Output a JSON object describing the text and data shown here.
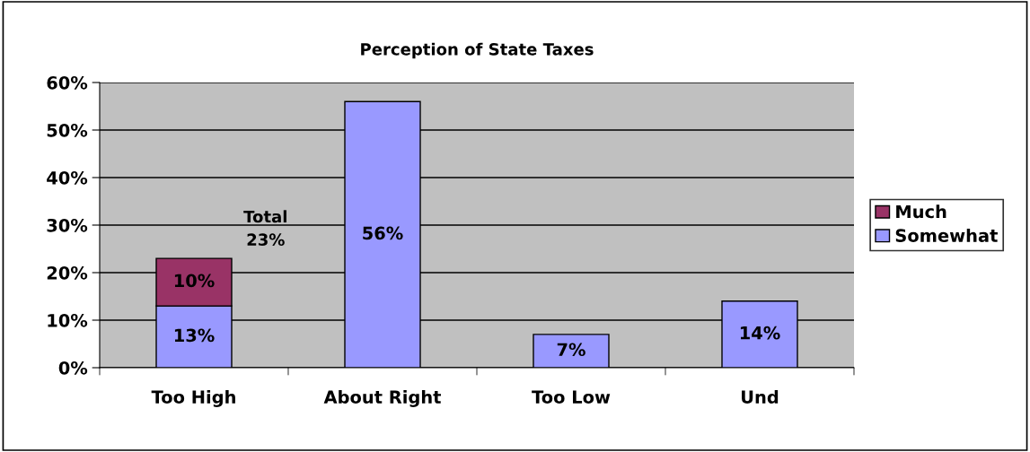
{
  "chart_data": {
    "type": "bar",
    "title": "Perception of State Taxes",
    "categories": [
      "Too High",
      "About Right",
      "Too Low",
      "Und"
    ],
    "stacked": true,
    "series": [
      {
        "name": "Somewhat",
        "color": "#9999ff",
        "values": [
          13,
          56,
          7,
          14
        ],
        "value_labels": [
          "13%",
          "56%",
          "7%",
          "14%"
        ]
      },
      {
        "name": "Much",
        "color": "#993366",
        "values": [
          10,
          null,
          null,
          null
        ],
        "value_labels": [
          "10%",
          null,
          null,
          null
        ]
      }
    ],
    "totals": [
      "Total\n23%",
      null,
      null,
      null
    ],
    "ylim": [
      0,
      60
    ],
    "yticks": [
      {
        "value": 0,
        "label": "0%"
      },
      {
        "value": 10,
        "label": "10%"
      },
      {
        "value": 20,
        "label": "20%"
      },
      {
        "value": 30,
        "label": "30%"
      },
      {
        "value": 40,
        "label": "40%"
      },
      {
        "value": 50,
        "label": "50%"
      },
      {
        "value": 60,
        "label": "60%"
      }
    ],
    "grid": "y",
    "legend": "right"
  }
}
